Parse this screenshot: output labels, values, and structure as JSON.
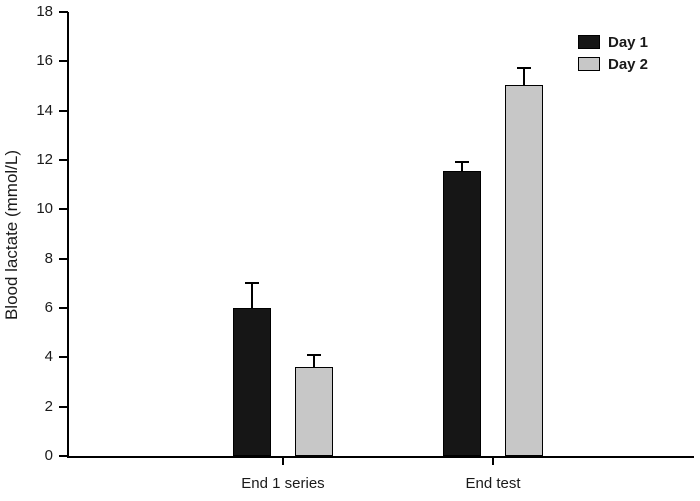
{
  "chart_data": {
    "type": "bar",
    "title": "",
    "xlabel": "",
    "ylabel": "Blood lactate (mmol/L)",
    "ylim": [
      0,
      18
    ],
    "ytick_step": 2,
    "grid": false,
    "legend_position": "top-right",
    "categories": [
      "End 1 series",
      "End test"
    ],
    "series": [
      {
        "name": "Day 1",
        "color": "#161616",
        "values": [
          6.0,
          11.55
        ],
        "errors": [
          1.0,
          0.35
        ]
      },
      {
        "name": "Day 2",
        "color": "#c7c7c7",
        "values": [
          3.6,
          15.05
        ],
        "errors": [
          0.5,
          0.7
        ]
      }
    ]
  }
}
